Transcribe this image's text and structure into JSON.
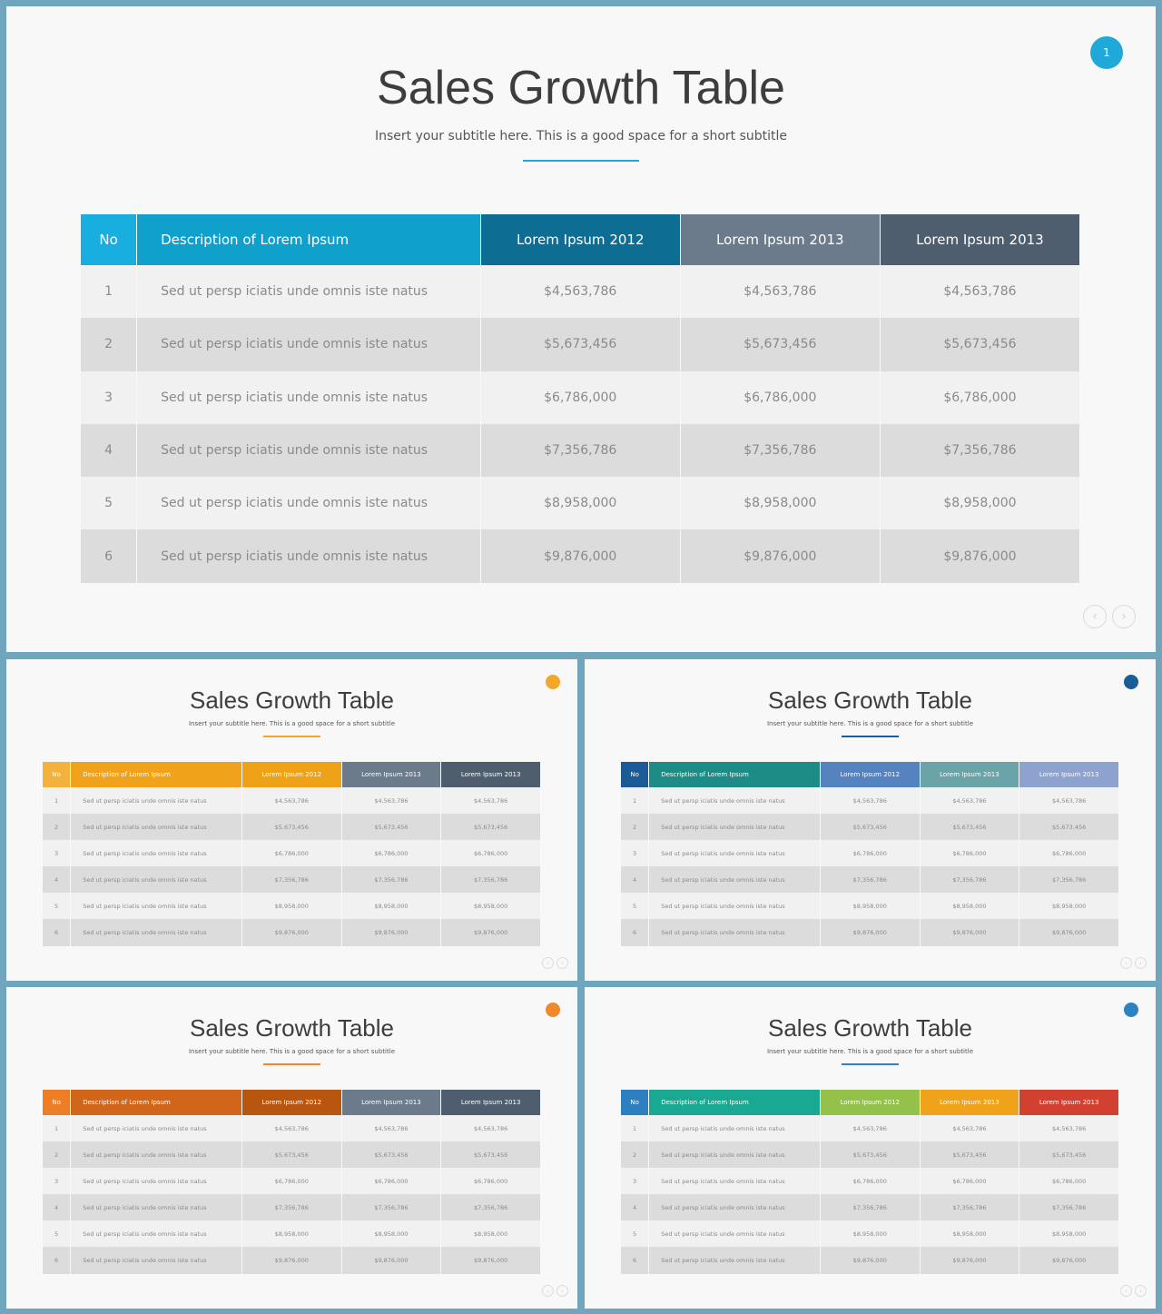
{
  "columns": [
    "No",
    "Description of Lorem Ipsum",
    "Lorem Ipsum 2012",
    "Lorem Ipsum 2013",
    "Lorem Ipsum 2013"
  ],
  "rows": [
    {
      "no": "1",
      "desc": "Sed ut persp iciatis unde omnis iste natus",
      "v2012": "$4,563,786",
      "v2013a": "$4,563,786",
      "v2013b": "$4,563,786"
    },
    {
      "no": "2",
      "desc": "Sed ut persp iciatis unde omnis iste natus",
      "v2012": "$5,673,456",
      "v2013a": "$5,673,456",
      "v2013b": "$5,673,456"
    },
    {
      "no": "3",
      "desc": "Sed ut persp iciatis unde omnis iste natus",
      "v2012": "$6,786,000",
      "v2013a": "$6,786,000",
      "v2013b": "$6,786,000"
    },
    {
      "no": "4",
      "desc": "Sed ut persp iciatis unde omnis iste natus",
      "v2012": "$7,356,786",
      "v2013a": "$7,356,786",
      "v2013b": "$7,356,786"
    },
    {
      "no": "5",
      "desc": "Sed ut persp iciatis unde omnis iste natus",
      "v2012": "$8,958,000",
      "v2013a": "$8,958,000",
      "v2013b": "$8,958,000"
    },
    {
      "no": "6",
      "desc": "Sed ut persp iciatis unde omnis iste natus",
      "v2012": "$9,876,000",
      "v2013a": "$9,876,000",
      "v2013b": "$9,876,000"
    }
  ],
  "slides": [
    {
      "id": "slide-main",
      "title": "Sales Growth Table",
      "subtitle": "Insert your subtitle here. This is a good space for a short subtitle",
      "badge": "1",
      "accent": "#1fa9d8",
      "header_colors": [
        "#18aee0",
        "#0fa0cc",
        "#0e6d92",
        "#6b7b8c",
        "#4e5e6f"
      ]
    },
    {
      "id": "slide-2",
      "title": "Sales Growth Table",
      "subtitle": "Insert your subtitle here. This is a good space for a short subtitle",
      "badge": "",
      "accent": "#f2a72b",
      "header_colors": [
        "#f3b23b",
        "#f0a21a",
        "#eea218",
        "#6b7b8c",
        "#4e5e6f"
      ]
    },
    {
      "id": "slide-3",
      "title": "Sales Growth Table",
      "subtitle": "Insert your subtitle here. This is a good space for a short subtitle",
      "badge": "",
      "accent": "#1b5d97",
      "header_colors": [
        "#1b5a94",
        "#1e8c86",
        "#5483c0",
        "#6aa3a8",
        "#8ea2d0"
      ]
    },
    {
      "id": "slide-4",
      "title": "Sales Growth Table",
      "subtitle": "Insert your subtitle here. This is a good space for a short subtitle",
      "badge": "",
      "accent": "#ee8a2a",
      "header_colors": [
        "#ee7d25",
        "#d1661a",
        "#b8560f",
        "#6b7b8c",
        "#4e5e6f"
      ]
    },
    {
      "id": "slide-5",
      "title": "Sales Growth Table",
      "subtitle": "Insert your subtitle here. This is a good space for a short subtitle",
      "badge": "",
      "accent": "#2d83c2",
      "header_colors": [
        "#2d7fc0",
        "#19a993",
        "#94c14a",
        "#f0a21a",
        "#d24130"
      ]
    }
  ],
  "icons": {
    "prev": "chevron-left-icon",
    "next": "chevron-right-icon"
  }
}
